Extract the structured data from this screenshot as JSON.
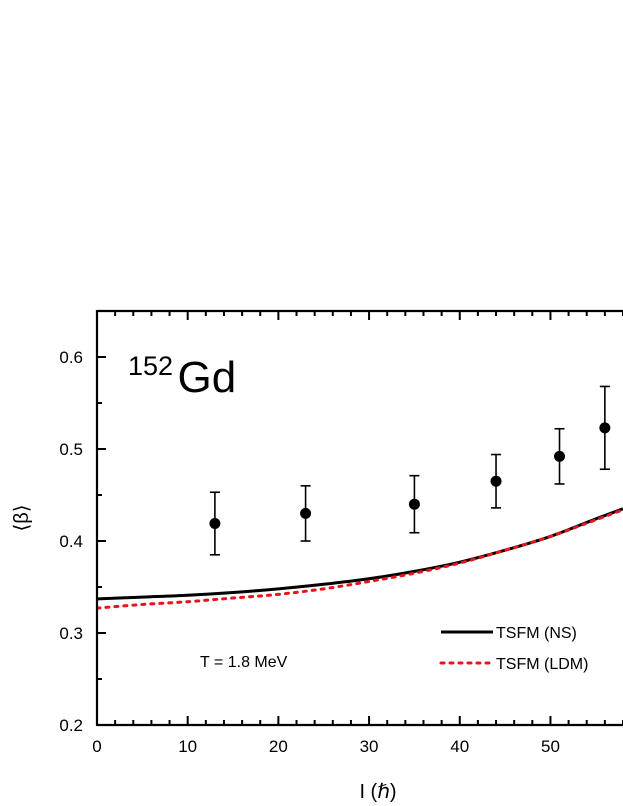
{
  "chart_data": {
    "type": "line",
    "xlabel": "I (ℏ)",
    "ylabel": "⟨β⟩",
    "xlim": [
      0,
      58
    ],
    "ylim": [
      0.2,
      0.65
    ],
    "x_ticks": [
      0,
      10,
      20,
      30,
      40,
      50
    ],
    "x_tick_labels": [
      "0",
      "10",
      "20",
      "30",
      "40",
      "50"
    ],
    "y_ticks": [
      0.2,
      0.3,
      0.4,
      0.5,
      0.6
    ],
    "y_tick_labels": [
      "0.2",
      "0.3",
      "0.4",
      "0.5",
      "0.6"
    ],
    "nucleus": {
      "mass": "152",
      "symbol": "Gd"
    },
    "annotation": "T = 1.8 MeV",
    "legend_position": "bottom-right",
    "series": [
      {
        "name": "TSFM (NS)",
        "style": "solid",
        "color": "#000000",
        "x": [
          0,
          5,
          10,
          15,
          20,
          25,
          30,
          35,
          40,
          45,
          50,
          55,
          58
        ],
        "y": [
          0.337,
          0.339,
          0.341,
          0.344,
          0.348,
          0.353,
          0.359,
          0.367,
          0.377,
          0.39,
          0.405,
          0.424,
          0.435
        ]
      },
      {
        "name": "TSFM (LDM)",
        "style": "dotted",
        "color": "#e8141b",
        "x": [
          0,
          5,
          10,
          15,
          20,
          25,
          30,
          35,
          40,
          45,
          50,
          55,
          58
        ],
        "y": [
          0.327,
          0.331,
          0.334,
          0.338,
          0.342,
          0.348,
          0.356,
          0.365,
          0.376,
          0.39,
          0.405,
          0.423,
          0.434
        ]
      }
    ],
    "points": {
      "name": "data",
      "color": "#000000",
      "x": [
        13,
        23,
        35,
        44,
        51,
        56
      ],
      "y": [
        0.419,
        0.43,
        0.44,
        0.465,
        0.492,
        0.523
      ],
      "err_low": [
        0.034,
        0.03,
        0.031,
        0.029,
        0.03,
        0.045
      ],
      "err_high": [
        0.034,
        0.03,
        0.031,
        0.029,
        0.03,
        0.045
      ]
    }
  }
}
